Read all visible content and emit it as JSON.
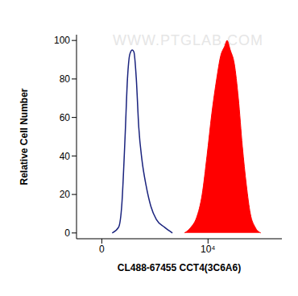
{
  "chart_data": {
    "type": "histogram",
    "watermark": "WWW.PTGLAB.COM",
    "x_label": "CL488-67455 CCT4(3C6A6)",
    "y_label": "Relative Cell Number",
    "log": "x",
    "grid": false,
    "xlim": [
      -200,
      250000
    ],
    "xticks": [
      {
        "value": 0,
        "label": "0"
      },
      {
        "value": 10000,
        "label": "10⁴"
      }
    ],
    "ylim": [
      -3,
      103
    ],
    "yticks": [
      0,
      20,
      40,
      60,
      80,
      100
    ],
    "series": [
      {
        "type": "line",
        "color": "#1a237e",
        "x": [
          57,
          108,
          139,
          175,
          205,
          239,
          277,
          304,
          348,
          398,
          472,
          581,
          740,
          970,
          1420,
          2050
        ],
        "values": [
          0,
          3,
          15,
          50,
          80,
          93,
          95,
          94,
          80,
          55,
          38,
          25,
          14,
          7,
          3,
          0
        ]
      },
      {
        "type": "area",
        "color": "#ff0000",
        "x": [
          3540,
          4710,
          6040,
          7730,
          9560,
          11800,
          14600,
          17400,
          20700,
          23000,
          26500,
          31500,
          37600,
          44800,
          53300,
          63400,
          78200,
          99900
        ],
        "values": [
          0,
          3,
          8,
          20,
          40,
          62,
          80,
          92,
          97,
          100,
          95,
          88,
          70,
          45,
          25,
          10,
          3,
          0
        ]
      }
    ]
  }
}
